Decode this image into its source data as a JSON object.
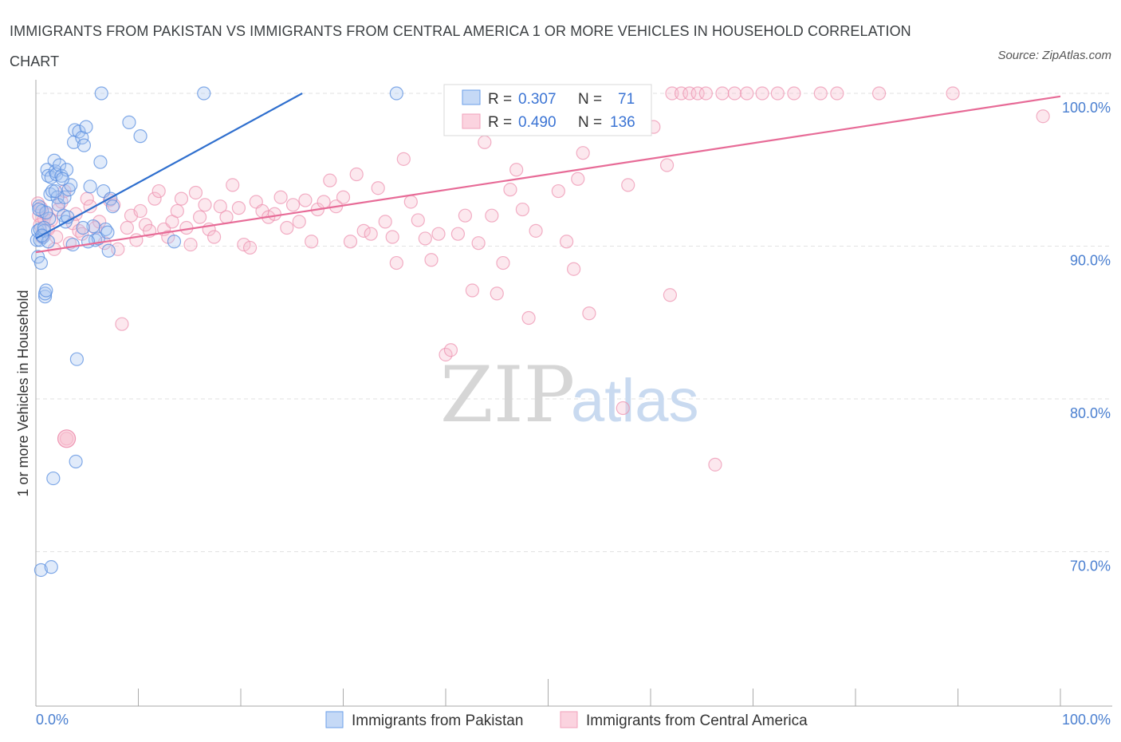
{
  "title": "IMMIGRANTS FROM PAKISTAN VS IMMIGRANTS FROM CENTRAL AMERICA 1 OR MORE VEHICLES IN HOUSEHOLD CORRELATION CHART",
  "source": "Source: ZipAtlas.com",
  "watermark": {
    "zip": "ZIP",
    "atlas": "atlas"
  },
  "colors": {
    "pakistan": "#6a9ee8",
    "pakistan_line": "#2f6fce",
    "central_america": "#f2a1bb",
    "central_america_line": "#e76b97",
    "tick_text": "#4a7fd0"
  },
  "stats": [
    {
      "r_label": "R =",
      "r_value": "0.307",
      "n_label": "N =",
      "n_value": "71"
    },
    {
      "r_label": "R =",
      "r_value": "0.490",
      "n_label": "N =",
      "n_value": "136"
    }
  ],
  "chart_data": {
    "type": "scatter",
    "ylabel": "1 or more Vehicles in Household",
    "xlim": [
      0,
      100
    ],
    "ylim": [
      60,
      100
    ],
    "x_ticks": [
      "0.0%",
      "100.0%"
    ],
    "y_ticks": [
      {
        "value": 100,
        "label": "100.0%"
      },
      {
        "value": 90,
        "label": "90.0%"
      },
      {
        "value": 80,
        "label": "80.0%"
      },
      {
        "value": 70,
        "label": "70.0%"
      }
    ],
    "grid": true,
    "legend_position": "bottom",
    "series": [
      {
        "name": "Immigrants from Pakistan",
        "color": "#6a9ee8",
        "trend": {
          "x": [
            0,
            26
          ],
          "y": [
            90.5,
            100.0
          ]
        },
        "points": [
          [
            0.1,
            90.4
          ],
          [
            0.2,
            91.0
          ],
          [
            0.2,
            89.3
          ],
          [
            0.3,
            92.6
          ],
          [
            0.4,
            91.1
          ],
          [
            0.4,
            90.4
          ],
          [
            0.5,
            88.9
          ],
          [
            0.5,
            68.8
          ],
          [
            0.6,
            92.3
          ],
          [
            0.7,
            90.6
          ],
          [
            0.8,
            91.0
          ],
          [
            0.9,
            86.7
          ],
          [
            0.9,
            86.9
          ],
          [
            1.0,
            87.1
          ],
          [
            1.1,
            95.0
          ],
          [
            1.2,
            94.6
          ],
          [
            1.2,
            90.3
          ],
          [
            1.3,
            91.8
          ],
          [
            1.4,
            93.4
          ],
          [
            1.5,
            94.5
          ],
          [
            1.6,
            93.6
          ],
          [
            1.7,
            74.8
          ],
          [
            1.8,
            95.6
          ],
          [
            1.9,
            94.9
          ],
          [
            2.0,
            94.7
          ],
          [
            2.1,
            93.2
          ],
          [
            2.2,
            92.7
          ],
          [
            2.3,
            95.3
          ],
          [
            2.5,
            94.6
          ],
          [
            2.7,
            92.0
          ],
          [
            2.8,
            93.2
          ],
          [
            2.9,
            91.6
          ],
          [
            3.0,
            95.0
          ],
          [
            3.2,
            93.7
          ],
          [
            3.4,
            94.0
          ],
          [
            3.6,
            90.1
          ],
          [
            3.7,
            96.8
          ],
          [
            3.8,
            97.6
          ],
          [
            3.9,
            75.9
          ],
          [
            4.0,
            82.6
          ],
          [
            4.2,
            97.5
          ],
          [
            4.5,
            97.1
          ],
          [
            4.7,
            96.6
          ],
          [
            4.9,
            97.8
          ],
          [
            5.3,
            93.9
          ],
          [
            5.6,
            91.3
          ],
          [
            5.8,
            90.4
          ],
          [
            6.1,
            90.5
          ],
          [
            6.3,
            95.5
          ],
          [
            6.4,
            100.0
          ],
          [
            6.6,
            93.6
          ],
          [
            6.8,
            91.1
          ],
          [
            7.0,
            90.9
          ],
          [
            7.1,
            89.7
          ],
          [
            7.3,
            93.1
          ],
          [
            7.5,
            92.6
          ],
          [
            9.1,
            98.1
          ],
          [
            10.2,
            97.2
          ],
          [
            13.5,
            90.3
          ],
          [
            16.4,
            100.0
          ],
          [
            1.5,
            69.0
          ],
          [
            0.8,
            91.2
          ],
          [
            1.0,
            92.2
          ],
          [
            2.6,
            94.4
          ],
          [
            0.3,
            92.4
          ],
          [
            0.6,
            90.7
          ],
          [
            1.9,
            93.6
          ],
          [
            3.1,
            91.9
          ],
          [
            4.6,
            91.2
          ],
          [
            5.1,
            90.3
          ],
          [
            35.2,
            100.0
          ]
        ]
      },
      {
        "name": "Immigrants from Central America",
        "color": "#f2a1bb",
        "trend": {
          "x": [
            0,
            100
          ],
          "y": [
            89.6,
            99.8
          ]
        },
        "points": [
          [
            0.2,
            92.8
          ],
          [
            0.3,
            92.0
          ],
          [
            0.4,
            91.4
          ],
          [
            0.5,
            92.5
          ],
          [
            0.6,
            90.6
          ],
          [
            0.8,
            91.8
          ],
          [
            1.0,
            92.1
          ],
          [
            1.2,
            91.1
          ],
          [
            1.5,
            91.7
          ],
          [
            1.8,
            89.8
          ],
          [
            2.0,
            90.6
          ],
          [
            2.2,
            92.4
          ],
          [
            2.5,
            92.9
          ],
          [
            2.8,
            93.6
          ],
          [
            3.0,
            77.4
          ],
          [
            3.3,
            90.2
          ],
          [
            3.6,
            91.5
          ],
          [
            3.9,
            92.1
          ],
          [
            4.2,
            91.0
          ],
          [
            4.5,
            90.8
          ],
          [
            5.0,
            93.1
          ],
          [
            5.3,
            92.6
          ],
          [
            5.8,
            91.2
          ],
          [
            6.2,
            91.6
          ],
          [
            6.7,
            90.2
          ],
          [
            7.2,
            93.0
          ],
          [
            7.6,
            92.7
          ],
          [
            8.0,
            89.8
          ],
          [
            8.4,
            84.9
          ],
          [
            8.9,
            91.2
          ],
          [
            9.3,
            92.0
          ],
          [
            9.8,
            90.4
          ],
          [
            10.2,
            92.3
          ],
          [
            10.7,
            91.4
          ],
          [
            11.1,
            91.0
          ],
          [
            11.6,
            93.1
          ],
          [
            12.0,
            93.6
          ],
          [
            12.5,
            91.1
          ],
          [
            12.9,
            90.6
          ],
          [
            13.3,
            91.6
          ],
          [
            13.8,
            92.3
          ],
          [
            14.2,
            93.1
          ],
          [
            14.7,
            91.2
          ],
          [
            15.1,
            90.1
          ],
          [
            15.6,
            93.5
          ],
          [
            16.0,
            91.9
          ],
          [
            16.5,
            92.7
          ],
          [
            16.9,
            91.1
          ],
          [
            17.4,
            90.6
          ],
          [
            18.0,
            92.6
          ],
          [
            18.6,
            91.9
          ],
          [
            19.2,
            94.0
          ],
          [
            19.8,
            92.5
          ],
          [
            20.3,
            90.1
          ],
          [
            20.9,
            89.9
          ],
          [
            21.5,
            92.9
          ],
          [
            22.1,
            92.3
          ],
          [
            22.7,
            91.9
          ],
          [
            23.3,
            92.1
          ],
          [
            23.9,
            93.2
          ],
          [
            24.5,
            91.2
          ],
          [
            25.1,
            92.7
          ],
          [
            25.7,
            91.6
          ],
          [
            26.3,
            93.0
          ],
          [
            26.9,
            90.3
          ],
          [
            27.5,
            92.4
          ],
          [
            28.1,
            92.9
          ],
          [
            28.7,
            94.3
          ],
          [
            29.3,
            92.6
          ],
          [
            30.0,
            93.2
          ],
          [
            30.7,
            90.3
          ],
          [
            31.3,
            94.7
          ],
          [
            32.0,
            91.0
          ],
          [
            32.7,
            90.8
          ],
          [
            33.4,
            93.8
          ],
          [
            34.1,
            91.6
          ],
          [
            34.8,
            90.6
          ],
          [
            35.2,
            88.9
          ],
          [
            35.9,
            95.7
          ],
          [
            36.6,
            92.9
          ],
          [
            37.3,
            91.7
          ],
          [
            38.0,
            90.5
          ],
          [
            38.6,
            89.1
          ],
          [
            39.3,
            90.8
          ],
          [
            40.0,
            82.9
          ],
          [
            40.5,
            83.2
          ],
          [
            41.2,
            90.8
          ],
          [
            41.9,
            92.0
          ],
          [
            42.6,
            87.1
          ],
          [
            43.2,
            90.2
          ],
          [
            43.8,
            96.8
          ],
          [
            44.5,
            92.0
          ],
          [
            45.0,
            86.9
          ],
          [
            45.6,
            88.9
          ],
          [
            46.3,
            93.7
          ],
          [
            46.9,
            95.0
          ],
          [
            47.5,
            92.4
          ],
          [
            48.1,
            85.3
          ],
          [
            48.8,
            91.0
          ],
          [
            50.3,
            97.8
          ],
          [
            51.0,
            93.6
          ],
          [
            51.8,
            90.3
          ],
          [
            52.5,
            88.5
          ],
          [
            52.9,
            94.4
          ],
          [
            53.4,
            96.1
          ],
          [
            54.0,
            85.6
          ],
          [
            54.5,
            98.5
          ],
          [
            55.3,
            98.0
          ],
          [
            56.2,
            99.7
          ],
          [
            57.3,
            79.4
          ],
          [
            57.8,
            94.0
          ],
          [
            59.0,
            99.6
          ],
          [
            60.3,
            97.8
          ],
          [
            61.6,
            95.3
          ],
          [
            61.9,
            86.8
          ],
          [
            62.1,
            100.0
          ],
          [
            63.0,
            100.0
          ],
          [
            63.8,
            100.0
          ],
          [
            64.6,
            100.0
          ],
          [
            65.4,
            100.0
          ],
          [
            66.3,
            75.7
          ],
          [
            67.0,
            100.0
          ],
          [
            68.2,
            100.0
          ],
          [
            69.4,
            100.0
          ],
          [
            70.9,
            100.0
          ],
          [
            72.4,
            100.0
          ],
          [
            74.0,
            100.0
          ],
          [
            76.6,
            100.0
          ],
          [
            78.2,
            100.0
          ],
          [
            82.3,
            100.0
          ],
          [
            89.5,
            100.0
          ],
          [
            98.3,
            98.5
          ],
          [
            42.4,
            98.0
          ],
          [
            46.0,
            100.0
          ]
        ]
      }
    ]
  },
  "legend": [
    {
      "label": "Immigrants from Pakistan"
    },
    {
      "label": "Immigrants from Central America"
    }
  ]
}
